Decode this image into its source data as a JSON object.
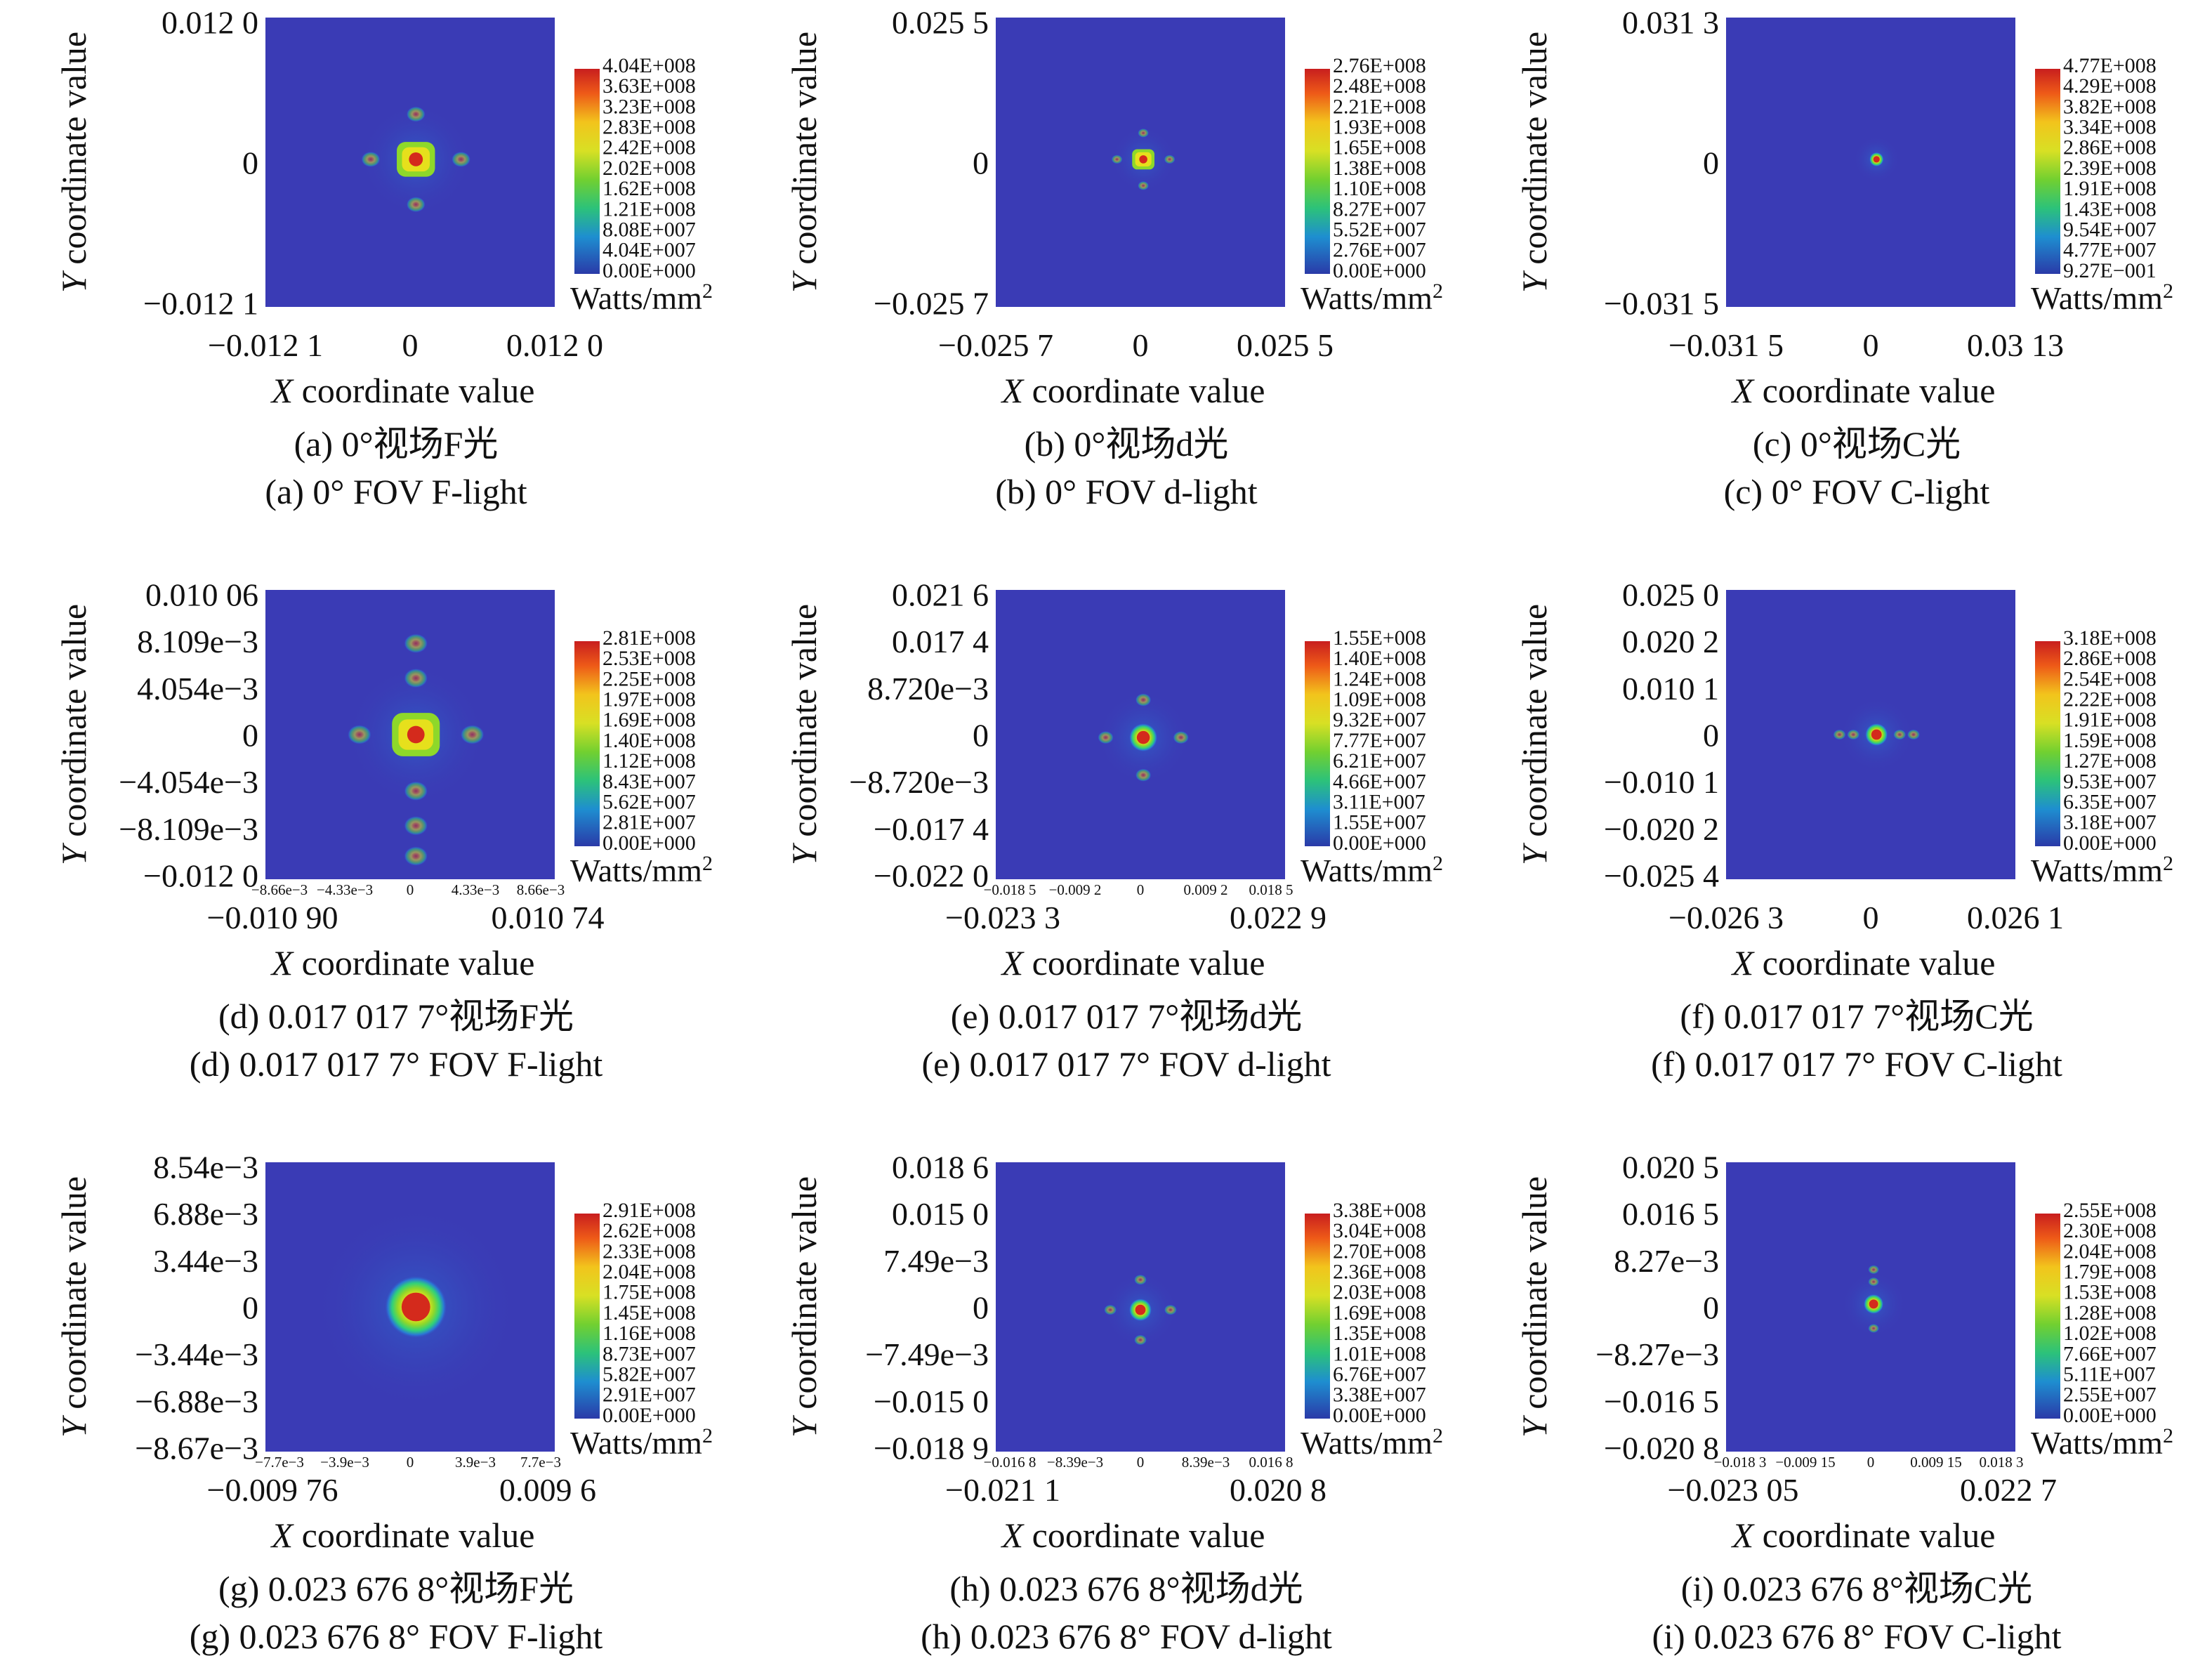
{
  "colors": {
    "background": "#3a3bb5",
    "colormap": [
      "#3a3bb5",
      "#2a78d6",
      "#1eb4c8",
      "#2fd07c",
      "#8ed82a",
      "#e6e01c",
      "#ee7818",
      "#d42a1c"
    ]
  },
  "chart_data": [
    {
      "type": "heatmap",
      "id": "a",
      "caption_cn": "(a) 0°视场F光",
      "caption_en": "(a) 0° FOV F-light",
      "xlabel_var": "X",
      "xlabel_rest": " coordinate value",
      "ylabel_var": "Y",
      "ylabel_rest": " coordinate value",
      "xticks_main": [
        "−0.012 1",
        "0",
        "0.012 0"
      ],
      "xticks_inner": [],
      "yticks": [
        "0.012 0",
        "0",
        "−0.012 1"
      ],
      "colorbar": {
        "labels": [
          "4.04E+008",
          "3.63E+008",
          "3.23E+008",
          "2.83E+008",
          "2.42E+008",
          "2.02E+008",
          "1.62E+008",
          "1.21E+008",
          "8.08E+007",
          "4.04E+007",
          "0.00E+000"
        ],
        "unit": "Watts/mm",
        "unit_sup": "2"
      },
      "spot": {
        "cx": 0.52,
        "cy": 0.49,
        "r": 0.06,
        "shape": "square"
      }
    },
    {
      "type": "heatmap",
      "id": "b",
      "caption_cn": "(b) 0°视场d光",
      "caption_en": "(b) 0° FOV d-light",
      "xlabel_var": "X",
      "xlabel_rest": " coordinate value",
      "ylabel_var": "Y",
      "ylabel_rest": " coordinate value",
      "xticks_main": [
        "−0.025 7",
        "0",
        "0.025 5"
      ],
      "xticks_inner": [],
      "yticks": [
        "0.025 5",
        "0",
        "−0.025 7"
      ],
      "colorbar": {
        "labels": [
          "2.76E+008",
          "2.48E+008",
          "2.21E+008",
          "1.93E+008",
          "1.65E+008",
          "1.38E+008",
          "1.10E+008",
          "8.27E+007",
          "5.52E+007",
          "2.76E+007",
          "0.00E+000"
        ],
        "unit": "Watts/mm",
        "unit_sup": "2"
      },
      "spot": {
        "cx": 0.51,
        "cy": 0.49,
        "r": 0.035,
        "shape": "square"
      }
    },
    {
      "type": "heatmap",
      "id": "c",
      "caption_cn": "(c) 0°视场C光",
      "caption_en": "(c) 0° FOV C-light",
      "xlabel_var": "X",
      "xlabel_rest": " coordinate value",
      "ylabel_var": "Y",
      "ylabel_rest": " coordinate value",
      "xticks_main": [
        "−0.031 5",
        "0",
        "0.03 13"
      ],
      "xticks_inner": [],
      "yticks": [
        "0.031 3",
        "0",
        "−0.031 5"
      ],
      "colorbar": {
        "labels": [
          "4.77E+008",
          "4.29E+008",
          "3.82E+008",
          "3.34E+008",
          "2.86E+008",
          "2.39E+008",
          "1.91E+008",
          "1.43E+008",
          "9.54E+007",
          "4.77E+007",
          "9.27E−001"
        ],
        "unit": "Watts/mm",
        "unit_sup": "2"
      },
      "spot": {
        "cx": 0.52,
        "cy": 0.49,
        "r": 0.025,
        "shape": "round"
      }
    },
    {
      "type": "heatmap",
      "id": "d",
      "caption_cn": "(d) 0.017 017 7°视场F光",
      "caption_en": "(d) 0.017 017 7° FOV F-light",
      "xlabel_var": "X",
      "xlabel_rest": " coordinate value",
      "ylabel_var": "Y",
      "ylabel_rest": " coordinate value",
      "xticks_main": [
        "−0.010 90",
        "0.010 74"
      ],
      "xticks_inner": [
        "−8.66e−3",
        "−4.33e−3",
        "0",
        "4.33e−3",
        "8.66e−3"
      ],
      "yticks": [
        "0.010 06",
        "8.109e−3",
        "4.054e−3",
        "0",
        "−4.054e−3",
        "−8.109e−3",
        "−0.012 0"
      ],
      "colorbar": {
        "labels": [
          "2.81E+008",
          "2.53E+008",
          "2.25E+008",
          "1.97E+008",
          "1.69E+008",
          "1.40E+008",
          "1.12E+008",
          "8.43E+007",
          "5.62E+007",
          "2.81E+007",
          "0.00E+000"
        ],
        "unit": "Watts/mm",
        "unit_sup": "2"
      },
      "spot": {
        "cx": 0.52,
        "cy": 0.5,
        "r": 0.075,
        "shape": "wide"
      }
    },
    {
      "type": "heatmap",
      "id": "e",
      "caption_cn": "(e) 0.017 017 7°视场d光",
      "caption_en": "(e) 0.017 017 7° FOV d-light",
      "xlabel_var": "X",
      "xlabel_rest": " coordinate value",
      "ylabel_var": "Y",
      "ylabel_rest": " coordinate value",
      "xticks_main": [
        "−0.023 3",
        "0.022 9"
      ],
      "xticks_inner": [
        "−0.018 5",
        "−0.009 2",
        "0",
        "0.009 2",
        "0.018 5"
      ],
      "yticks": [
        "0.021 6",
        "0.017 4",
        "8.720e−3",
        "0",
        "−8.720e−3",
        "−0.017 4",
        "−0.022 0"
      ],
      "colorbar": {
        "labels": [
          "1.55E+008",
          "1.40E+008",
          "1.24E+008",
          "1.09E+008",
          "9.32E+007",
          "7.77E+007",
          "6.21E+007",
          "4.66E+007",
          "3.11E+007",
          "1.55E+007",
          "0.00E+000"
        ],
        "unit": "Watts/mm",
        "unit_sup": "2"
      },
      "spot": {
        "cx": 0.51,
        "cy": 0.51,
        "r": 0.05,
        "shape": "cross"
      }
    },
    {
      "type": "heatmap",
      "id": "f",
      "caption_cn": "(f) 0.017 017 7°视场C光",
      "caption_en": "(f) 0.017 017 7° FOV C-light",
      "xlabel_var": "X",
      "xlabel_rest": " coordinate value",
      "ylabel_var": "Y",
      "ylabel_rest": " coordinate value",
      "xticks_main": [
        "−0.026 3",
        "0",
        "0.026 1"
      ],
      "xticks_inner": [],
      "yticks": [
        "0.025 0",
        "0.020 2",
        "0.010 1",
        "0",
        "−0.010 1",
        "−0.020 2",
        "−0.025 4"
      ],
      "colorbar": {
        "labels": [
          "3.18E+008",
          "2.86E+008",
          "2.54E+008",
          "2.22E+008",
          "1.91E+008",
          "1.59E+008",
          "1.27E+008",
          "9.53E+007",
          "6.35E+007",
          "3.18E+007",
          "0.00E+000"
        ],
        "unit": "Watts/mm",
        "unit_sup": "2"
      },
      "spot": {
        "cx": 0.52,
        "cy": 0.5,
        "r": 0.04,
        "shape": "hline"
      }
    },
    {
      "type": "heatmap",
      "id": "g",
      "caption_cn": "(g) 0.023 676 8°视场F光",
      "caption_en": "(g) 0.023 676 8° FOV F-light",
      "xlabel_var": "X",
      "xlabel_rest": " coordinate value",
      "ylabel_var": "Y",
      "ylabel_rest": " coordinate value",
      "xticks_main": [
        "−0.009 76",
        "0.009 6"
      ],
      "xticks_inner": [
        "−7.7e−3",
        "−3.9e−3",
        "0",
        "3.9e−3",
        "7.7e−3"
      ],
      "yticks": [
        "8.54e−3",
        "6.88e−3",
        "3.44e−3",
        "0",
        "−3.44e−3",
        "−6.88e−3",
        "−8.67e−3"
      ],
      "colorbar": {
        "labels": [
          "2.91E+008",
          "2.62E+008",
          "2.33E+008",
          "2.04E+008",
          "1.75E+008",
          "1.45E+008",
          "1.16E+008",
          "8.73E+007",
          "5.82E+007",
          "2.91E+007",
          "0.00E+000"
        ],
        "unit": "Watts/mm",
        "unit_sup": "2"
      },
      "spot": {
        "cx": 0.52,
        "cy": 0.5,
        "r": 0.11,
        "shape": "blob"
      }
    },
    {
      "type": "heatmap",
      "id": "h",
      "caption_cn": "(h) 0.023 676 8°视场d光",
      "caption_en": "(h) 0.023 676 8° FOV d-light",
      "xlabel_var": "X",
      "xlabel_rest": " coordinate value",
      "ylabel_var": "Y",
      "ylabel_rest": " coordinate value",
      "xticks_main": [
        "−0.021 1",
        "0.020 8"
      ],
      "xticks_inner": [
        "−0.016 8",
        "−8.39e−3",
        "0",
        "8.39e−3",
        "0.016 8"
      ],
      "yticks": [
        "0.018 6",
        "0.015 0",
        "7.49e−3",
        "0",
        "−7.49e−3",
        "−0.015 0",
        "−0.018 9"
      ],
      "colorbar": {
        "labels": [
          "3.38E+008",
          "3.04E+008",
          "2.70E+008",
          "2.36E+008",
          "2.03E+008",
          "1.69E+008",
          "1.35E+008",
          "1.01E+008",
          "6.76E+007",
          "3.38E+007",
          "0.00E+000"
        ],
        "unit": "Watts/mm",
        "unit_sup": "2"
      },
      "spot": {
        "cx": 0.5,
        "cy": 0.51,
        "r": 0.04,
        "shape": "cross"
      }
    },
    {
      "type": "heatmap",
      "id": "i",
      "caption_cn": "(i) 0.023 676 8°视场C光",
      "caption_en": "(i) 0.023 676 8° FOV C-light",
      "xlabel_var": "X",
      "xlabel_rest": " coordinate value",
      "ylabel_var": "Y",
      "ylabel_rest": " coordinate value",
      "xticks_main": [
        "−0.023 05",
        "0.022 7"
      ],
      "xticks_inner": [
        "−0.018 3",
        "−0.009 15",
        "0",
        "0.009 15",
        "0.018 3"
      ],
      "yticks": [
        "0.020 5",
        "0.016 5",
        "8.27e−3",
        "0",
        "−8.27e−3",
        "−0.016 5",
        "−0.020 8"
      ],
      "colorbar": {
        "labels": [
          "2.55E+008",
          "2.30E+008",
          "2.04E+008",
          "1.79E+008",
          "1.53E+008",
          "1.28E+008",
          "1.02E+008",
          "7.66E+007",
          "5.11E+007",
          "2.55E+007",
          "0.00E+000"
        ],
        "unit": "Watts/mm",
        "unit_sup": "2"
      },
      "spot": {
        "cx": 0.51,
        "cy": 0.49,
        "r": 0.035,
        "shape": "vline"
      }
    }
  ]
}
